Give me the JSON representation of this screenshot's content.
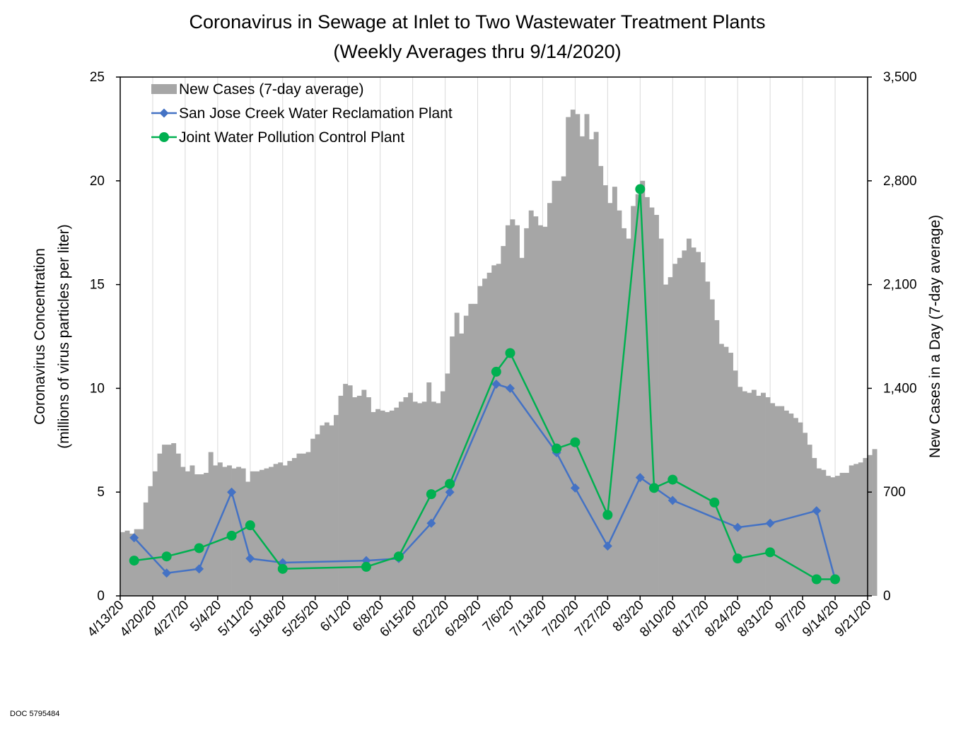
{
  "chart_data": {
    "type": "bar+line",
    "title": "Coronavirus in Sewage at Inlet to Two Wastewater Treatment Plants",
    "subtitle": "(Weekly Averages thru 9/14/2020)",
    "ylabel_left": [
      "Coronavirus Concentration",
      "(millions of virus particles per liter)"
    ],
    "ylabel_right": "New Cases in a Day (7-day average)",
    "ylim_left": [
      0,
      25
    ],
    "ylim_right": [
      0,
      3500
    ],
    "y_ticks_left": [
      "0",
      "5",
      "10",
      "15",
      "20",
      "25"
    ],
    "y_ticks_right": [
      "0",
      "700",
      "1,400",
      "2,100",
      "2,800",
      "3,500"
    ],
    "x_ticks": [
      "4/13/20",
      "4/20/20",
      "4/27/20",
      "5/4/20",
      "5/11/20",
      "5/18/20",
      "5/25/20",
      "6/1/20",
      "6/8/20",
      "6/15/20",
      "6/22/20",
      "6/29/20",
      "7/6/20",
      "7/13/20",
      "7/20/20",
      "7/27/20",
      "8/3/20",
      "8/10/20",
      "8/17/20",
      "8/24/20",
      "8/31/20",
      "9/7/20",
      "9/14/20",
      "9/21/20"
    ],
    "x_start": "2020-04-13",
    "grid": "vertical",
    "legend_position": "top-left",
    "series": [
      {
        "name": "New Cases (7-day average)",
        "kind": "bar",
        "axis": "right",
        "color": "#a6a6a6",
        "values": [
          430,
          440,
          420,
          450,
          450,
          630,
          740,
          840,
          960,
          1020,
          1020,
          1030,
          960,
          870,
          840,
          880,
          820,
          820,
          830,
          970,
          880,
          900,
          870,
          880,
          860,
          870,
          860,
          770,
          840,
          840,
          850,
          860,
          870,
          890,
          900,
          880,
          910,
          930,
          960,
          960,
          970,
          1060,
          1090,
          1150,
          1170,
          1150,
          1220,
          1350,
          1430,
          1420,
          1340,
          1350,
          1390,
          1340,
          1240,
          1260,
          1250,
          1240,
          1250,
          1270,
          1310,
          1340,
          1370,
          1310,
          1300,
          1310,
          1440,
          1310,
          1300,
          1380,
          1500,
          1750,
          1910,
          1770,
          1890,
          1970,
          1970,
          2090,
          2140,
          2180,
          2230,
          2240,
          2360,
          2500,
          2540,
          2500,
          2280,
          2480,
          2600,
          2560,
          2500,
          2490,
          2650,
          2800,
          2800,
          2830,
          3230,
          3280,
          3250,
          3100,
          3250,
          3080,
          3130,
          2900,
          2770,
          2650,
          2760,
          2600,
          2480,
          2410,
          2630,
          2710,
          2800,
          2690,
          2620,
          2570,
          2410,
          2100,
          2150,
          2240,
          2280,
          2330,
          2410,
          2350,
          2320,
          2250,
          2120,
          2000,
          1860,
          1700,
          1680,
          1640,
          1520,
          1410,
          1380,
          1370,
          1390,
          1350,
          1370,
          1340,
          1300,
          1280,
          1280,
          1250,
          1230,
          1200,
          1170,
          1100,
          1020,
          930,
          860,
          850,
          810,
          800,
          810,
          830,
          830,
          880,
          890,
          900,
          930,
          950,
          990
        ]
      },
      {
        "name": "San Jose Creek Water Reclamation Plant",
        "kind": "line",
        "marker": "diamond",
        "axis": "left",
        "color": "#4472c4",
        "x": [
          "2020-04-16",
          "2020-04-23",
          "2020-04-30",
          "2020-05-07",
          "2020-05-11",
          "2020-05-18",
          "2020-06-05",
          "2020-06-12",
          "2020-06-19",
          "2020-06-23",
          "2020-07-03",
          "2020-07-06",
          "2020-07-16",
          "2020-07-20",
          "2020-07-27",
          "2020-08-03",
          "2020-08-10",
          "2020-08-24",
          "2020-08-31",
          "2020-09-10",
          "2020-09-14"
        ],
        "values": [
          2.8,
          1.1,
          1.3,
          5.0,
          1.8,
          1.6,
          1.7,
          1.8,
          3.5,
          5.0,
          10.2,
          10.0,
          6.9,
          5.2,
          2.4,
          5.7,
          4.6,
          3.3,
          3.5,
          4.1,
          0.8
        ]
      },
      {
        "name": "Joint Water Pollution Control Plant",
        "kind": "line",
        "marker": "circle",
        "axis": "left",
        "color": "#00b050",
        "x": [
          "2020-04-16",
          "2020-04-23",
          "2020-04-30",
          "2020-05-07",
          "2020-05-11",
          "2020-05-18",
          "2020-06-05",
          "2020-06-12",
          "2020-06-19",
          "2020-06-23",
          "2020-07-03",
          "2020-07-06",
          "2020-07-16",
          "2020-07-20",
          "2020-07-27",
          "2020-08-03",
          "2020-08-06",
          "2020-08-10",
          "2020-08-19",
          "2020-08-24",
          "2020-08-31",
          "2020-09-10",
          "2020-09-14"
        ],
        "values": [
          1.7,
          1.9,
          2.3,
          2.9,
          3.4,
          1.3,
          1.4,
          1.9,
          4.9,
          5.4,
          10.8,
          11.7,
          7.1,
          7.4,
          3.9,
          19.6,
          5.2,
          5.6,
          4.5,
          1.8,
          2.1,
          0.8,
          0.8
        ]
      }
    ]
  },
  "footer": {
    "doc_id": "DOC 5795484"
  }
}
